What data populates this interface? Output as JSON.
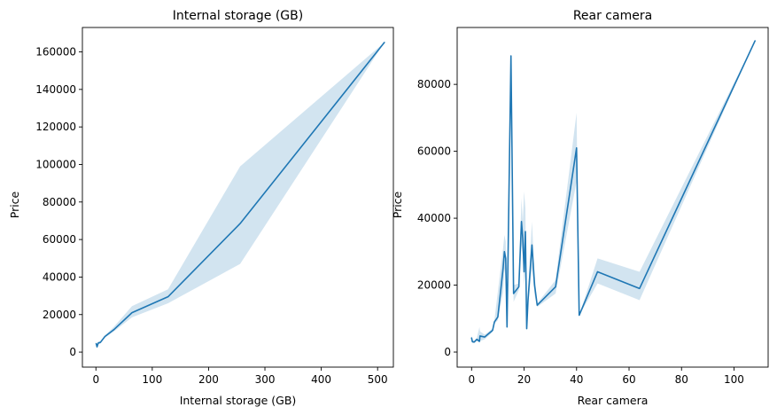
{
  "colors": {
    "line": "#1f77b4",
    "band": "#1f77b4",
    "band_opacity": 0.2
  },
  "chart_data": [
    {
      "type": "line",
      "title": "Internal storage (GB)",
      "xlabel": "Internal storage (GB)",
      "ylabel": "Price",
      "xlim": [
        -24,
        528
      ],
      "ylim": [
        -8000,
        173000
      ],
      "xticks": [
        0,
        100,
        200,
        300,
        400,
        500
      ],
      "yticks": [
        0,
        20000,
        40000,
        60000,
        80000,
        100000,
        120000,
        140000,
        160000
      ],
      "grid": false,
      "series": [
        {
          "x": [
            0.5,
            2,
            4,
            8,
            16,
            32,
            64,
            128,
            256,
            512
          ],
          "y": [
            4500,
            2800,
            4800,
            5200,
            8300,
            12000,
            21000,
            29500,
            68500,
            165000
          ],
          "ci_low": [
            3800,
            2200,
            4000,
            4600,
            7800,
            11000,
            18500,
            26000,
            47000,
            165000
          ],
          "ci_high": [
            5200,
            3400,
            5600,
            5800,
            8900,
            13500,
            24500,
            33500,
            99000,
            165000
          ]
        }
      ]
    },
    {
      "type": "line",
      "title": "Rear camera",
      "xlabel": "Rear camera",
      "ylabel": "Price",
      "xlim": [
        -5.5,
        113
      ],
      "ylim": [
        -4500,
        97000
      ],
      "xticks": [
        0,
        20,
        40,
        60,
        80,
        100
      ],
      "yticks": [
        0,
        20000,
        40000,
        60000,
        80000
      ],
      "grid": false,
      "series": [
        {
          "x": [
            0,
            0.3,
            1,
            2,
            3,
            3.2,
            5,
            8,
            8.7,
            10,
            12,
            12.5,
            13,
            13.5,
            15,
            16,
            18,
            19,
            19.5,
            20,
            20.5,
            21,
            21.5,
            23,
            24,
            25,
            32,
            40,
            41,
            48,
            64,
            108
          ],
          "y": [
            4200,
            3100,
            3000,
            3800,
            3200,
            4800,
            4500,
            6500,
            9000,
            10500,
            25000,
            30000,
            28000,
            7500,
            88500,
            17500,
            19500,
            39000,
            34000,
            24000,
            36000,
            7000,
            15500,
            32000,
            20000,
            14000,
            19500,
            61000,
            11000,
            24000,
            19000,
            93000
          ],
          "ci_low": [
            3400,
            2700,
            2700,
            3300,
            2900,
            3300,
            3800,
            6000,
            8500,
            9500,
            18000,
            25000,
            22000,
            7000,
            88500,
            15000,
            18500,
            32000,
            29000,
            20000,
            24000,
            6500,
            13500,
            25000,
            17000,
            13500,
            17500,
            51000,
            11000,
            20500,
            15500,
            93000
          ],
          "ci_high": [
            5000,
            3500,
            3300,
            4300,
            7500,
            6200,
            5200,
            7000,
            9500,
            18000,
            31000,
            35000,
            33000,
            8000,
            88500,
            20000,
            20500,
            46000,
            39000,
            48000,
            43000,
            7500,
            17500,
            39000,
            23000,
            14500,
            21500,
            71500,
            11000,
            28000,
            24000,
            93000
          ]
        }
      ]
    }
  ]
}
